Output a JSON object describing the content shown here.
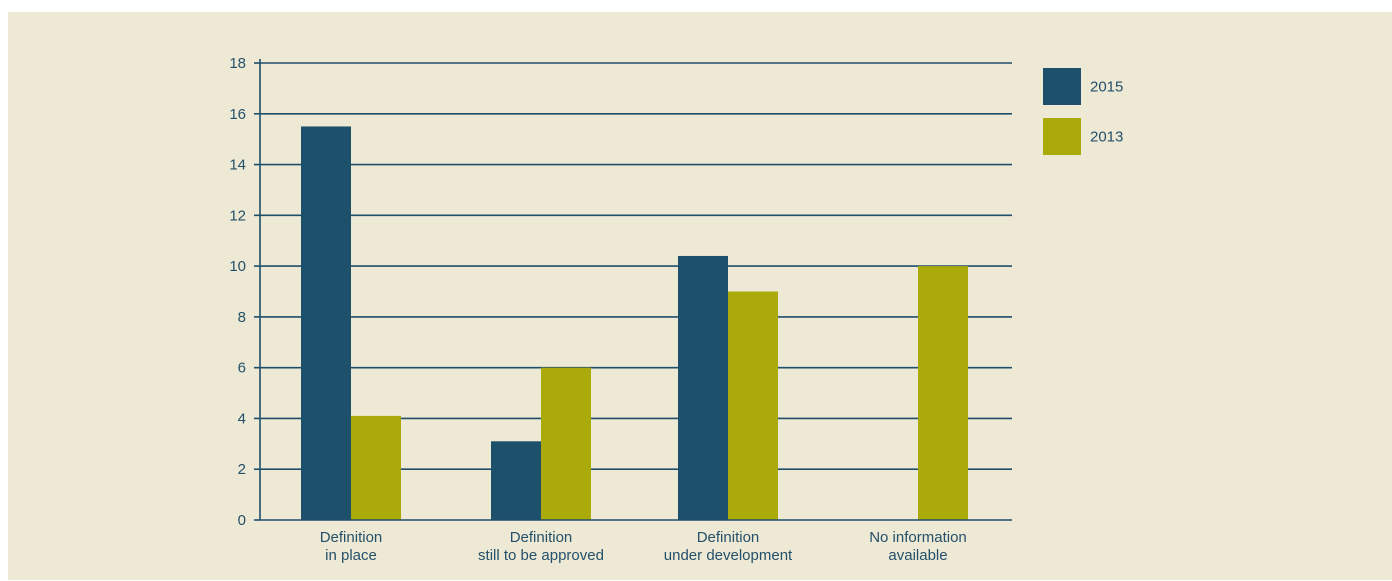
{
  "colors": {
    "background": "#ede9d4",
    "axis": "#1f4e6b",
    "text": "#24506b",
    "series_2015": "#1c506b",
    "series_2013": "#abaa0b"
  },
  "chart_data": {
    "type": "bar",
    "categories": [
      [
        "Definition",
        "in place"
      ],
      [
        "Definition",
        "still to be approved"
      ],
      [
        "Definition",
        "under development"
      ],
      [
        "No information",
        "available"
      ]
    ],
    "series": [
      {
        "name": "2015",
        "color": "#1c506b",
        "values": [
          15.5,
          3.1,
          10.4,
          null
        ]
      },
      {
        "name": "2013",
        "color": "#abaa0b",
        "values": [
          4.1,
          6.0,
          9.0,
          10.0
        ]
      }
    ],
    "ylim": [
      0,
      18
    ],
    "yticks": [
      0,
      2,
      4,
      6,
      8,
      10,
      12,
      14,
      16,
      18
    ],
    "grid": true,
    "legend": "top-right",
    "title": "",
    "xlabel": "",
    "ylabel": ""
  }
}
